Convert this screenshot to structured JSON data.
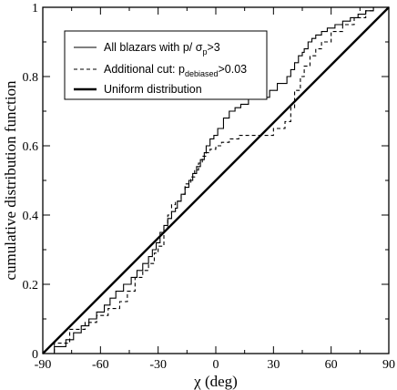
{
  "chart_data": {
    "type": "line",
    "xlabel": "χ (deg)",
    "ylabel": "cumulative distribution function",
    "xlim": [
      -90,
      90
    ],
    "ylim": [
      0,
      1
    ],
    "x_ticks": [
      -90,
      -60,
      -30,
      0,
      30,
      60,
      90
    ],
    "y_ticks": [
      0,
      0.2,
      0.4,
      0.6,
      0.8,
      1
    ],
    "y_tick_labels": [
      "0",
      "0.2",
      "0.4",
      "0.6",
      "0.8",
      "1"
    ],
    "grid": false,
    "legend_position": "top-left",
    "series": [
      {
        "legend": {
          "pre": "All blazars with p/ σ",
          "sub": "p",
          "post": ">3"
        },
        "style": "thin-solid",
        "color": "#000000",
        "step": true,
        "x": [
          -90,
          -84,
          -78,
          -74,
          -70,
          -66,
          -62,
          -58,
          -55,
          -52,
          -48,
          -44,
          -41,
          -38,
          -35,
          -33,
          -31,
          -29,
          -27,
          -25,
          -23,
          -21,
          -20,
          -18,
          -16,
          -14,
          -12,
          -10,
          -8,
          -6,
          -5,
          -3,
          -1,
          1,
          4,
          7,
          10,
          13,
          17,
          22,
          28,
          32,
          37,
          39,
          41,
          43,
          45,
          46,
          48,
          50,
          52,
          55,
          58,
          62,
          66,
          70,
          74,
          78,
          82,
          84,
          90
        ],
        "y": [
          0,
          0.02,
          0.04,
          0.06,
          0.08,
          0.1,
          0.12,
          0.14,
          0.16,
          0.18,
          0.2,
          0.22,
          0.24,
          0.26,
          0.28,
          0.3,
          0.32,
          0.35,
          0.37,
          0.39,
          0.41,
          0.42,
          0.44,
          0.46,
          0.48,
          0.5,
          0.52,
          0.54,
          0.56,
          0.58,
          0.6,
          0.62,
          0.63,
          0.65,
          0.68,
          0.7,
          0.71,
          0.72,
          0.74,
          0.74,
          0.76,
          0.78,
          0.8,
          0.82,
          0.84,
          0.86,
          0.87,
          0.88,
          0.9,
          0.91,
          0.92,
          0.93,
          0.94,
          0.95,
          0.96,
          0.97,
          0.98,
          0.99,
          1.0,
          1.0,
          1.0
        ]
      },
      {
        "legend": {
          "pre": "Additional cut: p",
          "sub": "debiased",
          "post": ">0.03"
        },
        "style": "dashed",
        "color": "#000000",
        "step": true,
        "x": [
          -90,
          -84,
          -76,
          -68,
          -62,
          -56,
          -50,
          -46,
          -42,
          -38,
          -35,
          -32,
          -30,
          -27,
          -25,
          -23,
          -21,
          -18,
          -16,
          -13,
          -11,
          -9,
          -7,
          -5,
          -3,
          0,
          3,
          7,
          12,
          20,
          30,
          36,
          39,
          41,
          44,
          46,
          49,
          52,
          55,
          60,
          66,
          72,
          78,
          82,
          90
        ],
        "y": [
          0,
          0.03,
          0.07,
          0.09,
          0.11,
          0.13,
          0.15,
          0.18,
          0.22,
          0.24,
          0.26,
          0.29,
          0.31,
          0.36,
          0.4,
          0.43,
          0.44,
          0.46,
          0.49,
          0.51,
          0.53,
          0.55,
          0.57,
          0.58,
          0.59,
          0.6,
          0.61,
          0.62,
          0.63,
          0.63,
          0.65,
          0.67,
          0.71,
          0.76,
          0.8,
          0.83,
          0.86,
          0.88,
          0.9,
          0.93,
          0.95,
          0.97,
          0.99,
          1.0,
          1.0
        ]
      },
      {
        "legend": {
          "pre": "Uniform distribution",
          "sub": "",
          "post": ""
        },
        "style": "thick-solid",
        "color": "#000000",
        "step": false,
        "x": [
          -90,
          90
        ],
        "y": [
          0,
          1
        ]
      }
    ]
  }
}
